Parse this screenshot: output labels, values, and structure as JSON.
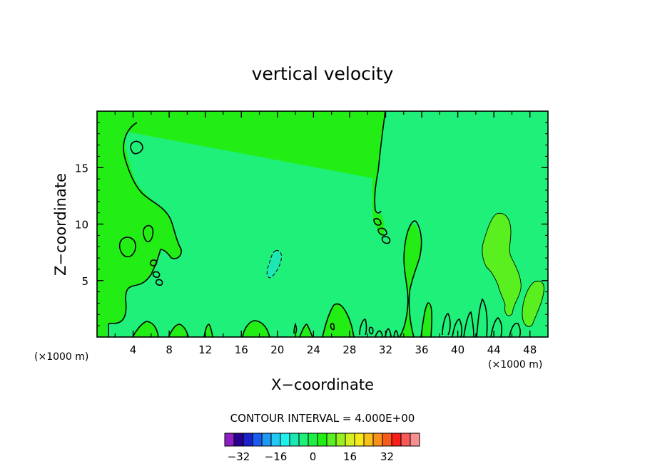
{
  "chart_data": {
    "type": "contour",
    "title": "vertical velocity",
    "xlabel": "X−coordinate",
    "ylabel": "Z−coordinate",
    "x_unit_label_left": "(×1000 m)",
    "x_unit_label_right": "(×1000 m)",
    "xlim": [
      0,
      50
    ],
    "ylim": [
      0,
      20
    ],
    "xticks": [
      4,
      8,
      12,
      16,
      20,
      24,
      28,
      32,
      36,
      40,
      44,
      48
    ],
    "yticks": [
      5,
      10,
      15
    ],
    "contour_interval_text": "CONTOUR INTERVAL = 4.000E+00",
    "contour_interval": 4,
    "colorbar": {
      "min": -36,
      "max": 36,
      "step": 4,
      "tick_values": [
        -32,
        -16,
        0,
        16,
        32
      ],
      "tick_labels": [
        "−32",
        "−16",
        "0",
        "16",
        "32"
      ],
      "colors": [
        "#8f1fc4",
        "#28008f",
        "#1a22c8",
        "#1b5cf0",
        "#1e98f2",
        "#20c8f2",
        "#1ef0ec",
        "#1de8b4",
        "#1ef07a",
        "#20ee48",
        "#22ee16",
        "#5af020",
        "#98f020",
        "#d4f020",
        "#f8e81a",
        "#f8c01a",
        "#f8901a",
        "#f85a1a",
        "#f81e1a",
        "#f85a5a",
        "#f89090"
      ]
    },
    "fill_levels": {
      "zero_to_four": "#22ee16",
      "minus_four_to_zero": "#1ef07a",
      "minus_eight_to_minus_four": "#1de8b4",
      "four_to_eight": "#5af020"
    }
  }
}
